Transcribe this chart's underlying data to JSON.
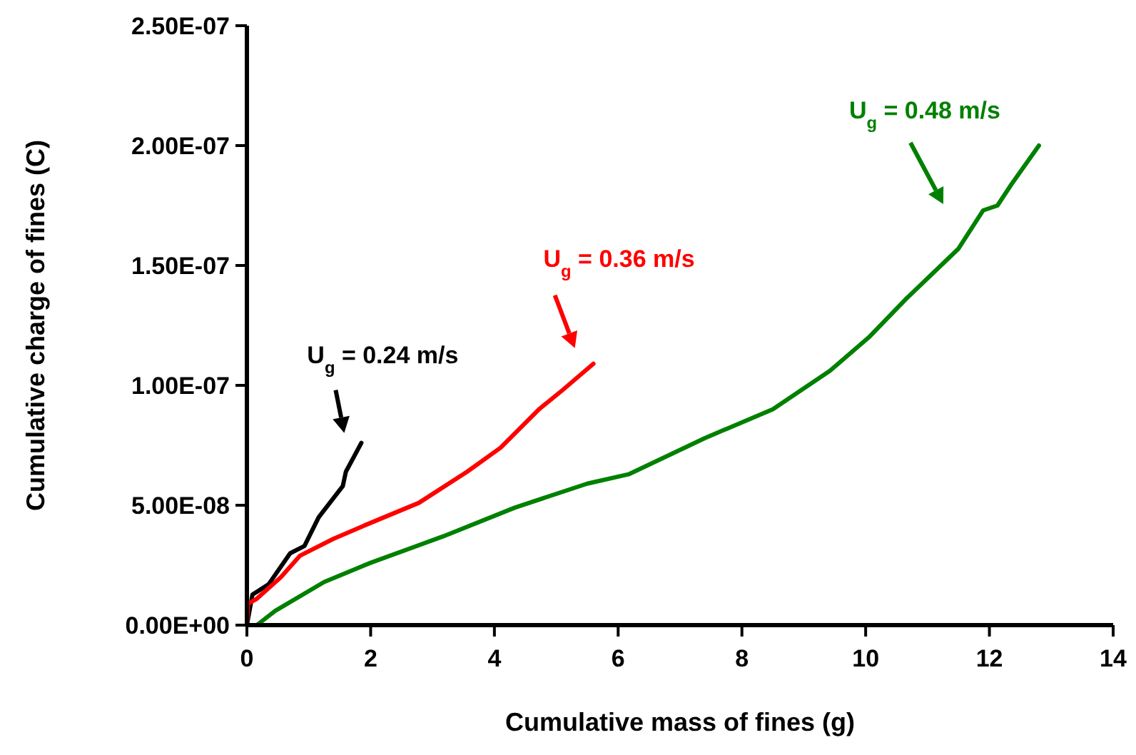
{
  "chart_data": {
    "type": "line",
    "xlabel": "Cumulative mass of fines (g)",
    "ylabel": "Cumulative charge of fines (C)",
    "xlim": [
      0,
      14
    ],
    "xticks": [
      0,
      2,
      4,
      6,
      8,
      10,
      12,
      14
    ],
    "ylim": [
      0,
      2.5e-07
    ],
    "yticks": [
      {
        "value": 0,
        "label": "0.00E+00"
      },
      {
        "value": 5e-08,
        "label": "5.00E-08"
      },
      {
        "value": 1e-07,
        "label": "1.00E-07"
      },
      {
        "value": 1.5e-07,
        "label": "1.50E-07"
      },
      {
        "value": 2e-07,
        "label": "2.00E-07"
      },
      {
        "value": 2.5e-07,
        "label": "2.50E-07"
      }
    ],
    "grid": false,
    "marker": "none",
    "line_style": "solid",
    "series": [
      {
        "name": "U$_{g}$ = 0.24 m/s",
        "color": "#000000",
        "x": [
          0,
          0.09,
          0.35,
          0.7,
          0.93,
          1.16,
          1.55,
          1.6,
          1.85
        ],
        "values": [
          0,
          1.27e-08,
          1.7e-08,
          3e-08,
          3.3e-08,
          4.5e-08,
          5.8e-08,
          6.4e-08,
          7.6e-08
        ]
      },
      {
        "name": "U$_{g}$ = 0.36 m/s",
        "color": "#ff0000",
        "x": [
          0,
          0.02,
          0.16,
          0.55,
          0.86,
          1.4,
          1.94,
          2.78,
          3.56,
          4.1,
          4.72,
          5.1,
          5.6
        ],
        "values": [
          0,
          9e-09,
          1.1e-08,
          2e-08,
          2.9e-08,
          3.6e-08,
          4.2e-08,
          5.1e-08,
          6.4e-08,
          7.4e-08,
          9e-08,
          9.8e-08,
          1.09e-07
        ]
      },
      {
        "name": "U$_{g}$ = 0.48 m/s",
        "color": "#008000",
        "x": [
          0.16,
          0.46,
          1.25,
          2.0,
          3.17,
          4.33,
          5.5,
          6.18,
          7.4,
          8.5,
          9.42,
          10.05,
          10.65,
          11.5,
          11.9,
          12.13,
          12.36,
          12.8
        ],
        "values": [
          0,
          6e-09,
          1.8e-08,
          2.6e-08,
          3.7e-08,
          4.9e-08,
          5.9e-08,
          6.3e-08,
          7.8e-08,
          9e-08,
          1.06e-07,
          1.2e-07,
          1.36e-07,
          1.57e-07,
          1.73e-07,
          1.75e-07,
          1.84e-07,
          2e-07
        ]
      }
    ]
  }
}
